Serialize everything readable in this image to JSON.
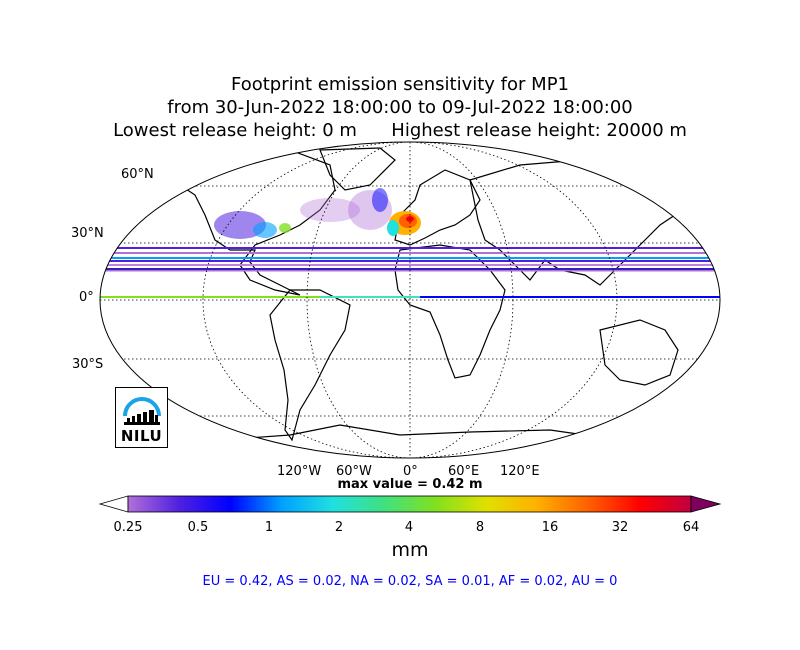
{
  "title": {
    "line1": "Footprint emission sensitivity for MP1",
    "line2": "from 30-Jun-2022 18:00:00 to 09-Jul-2022 18:00:00",
    "line3": "Lowest release height: 0 m      Highest release height: 20000 m"
  },
  "map": {
    "projection": "robinson",
    "lat_labels": [
      "60°N",
      "30°N",
      "0°",
      "30°S"
    ],
    "lon_labels": [
      "120°W",
      "60°W",
      "0°",
      "60°E",
      "120°E"
    ],
    "gridlines": true
  },
  "max_value": "max value = 0.42 m",
  "colorbar": {
    "ticks": [
      "0.25",
      "0.5",
      "1",
      "2",
      "4",
      "8",
      "16",
      "32",
      "64"
    ],
    "unit": "mm",
    "extend": "both",
    "colors": [
      "#ffffff",
      "#b070d8",
      "#5020e0",
      "#0000ff",
      "#00a0ff",
      "#20e0e0",
      "#40e080",
      "#80e020",
      "#e0e000",
      "#ffb000",
      "#ff6000",
      "#ff0000",
      "#c00040",
      "#800060"
    ]
  },
  "regions": "EU = 0.42,  AS = 0.02,  NA = 0.02,  SA = 0.01,  AF = 0.02,  AU = 0",
  "logo": {
    "text": "NILU"
  }
}
